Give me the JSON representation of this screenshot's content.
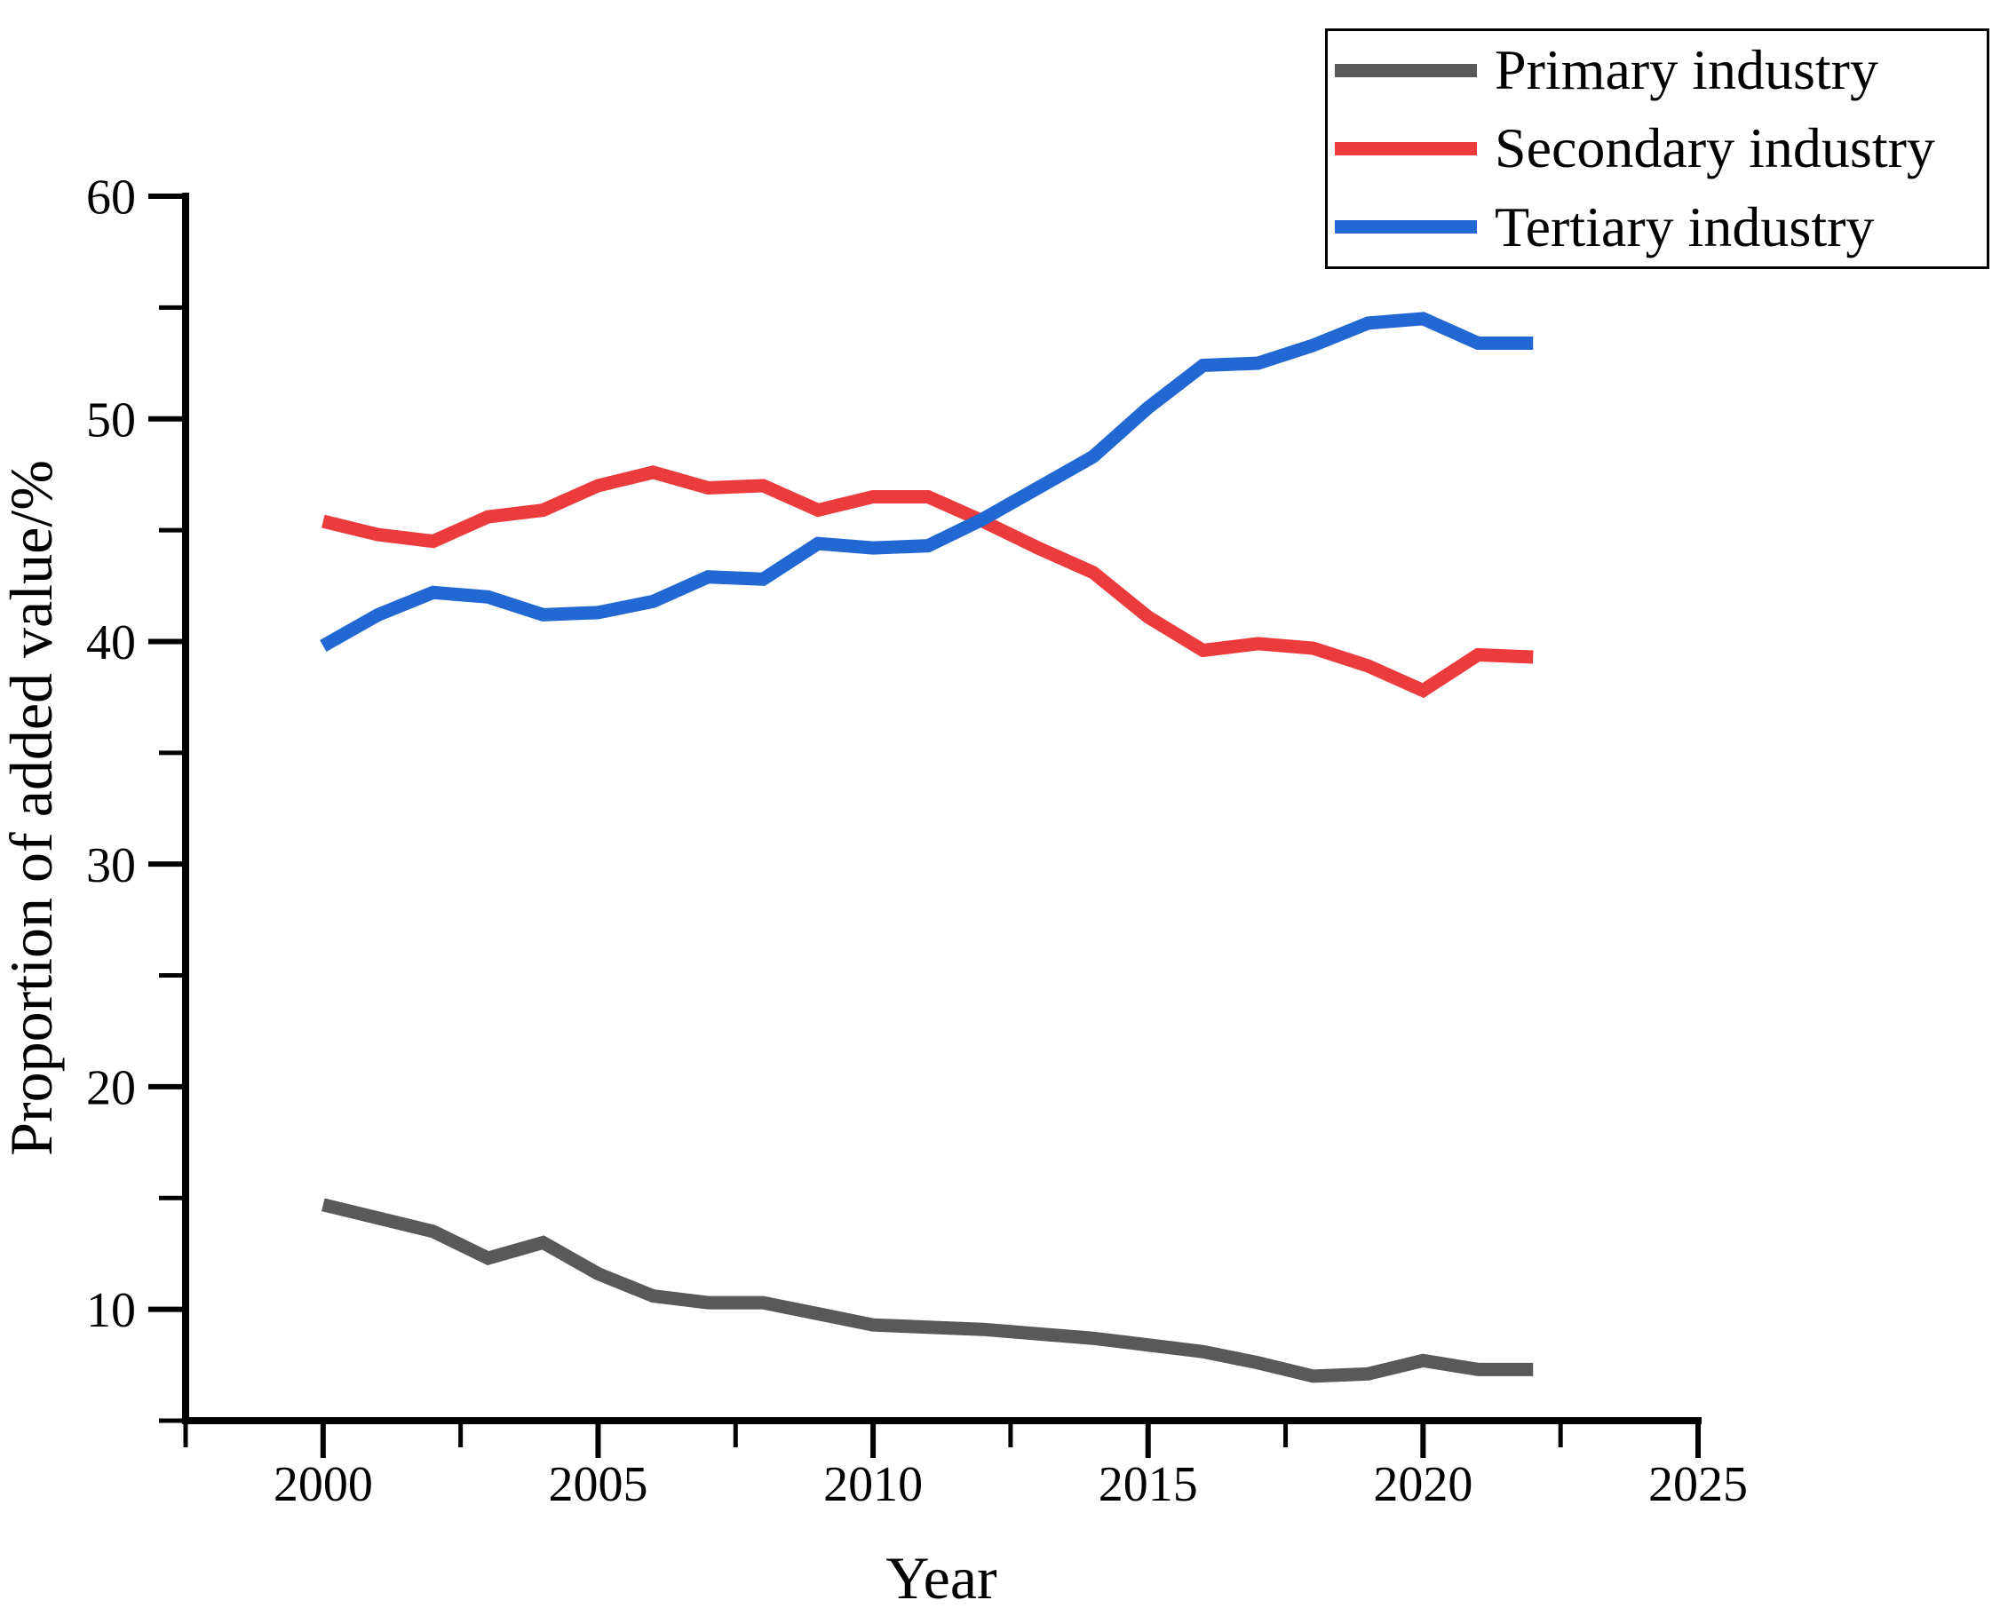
{
  "figure": {
    "background": "#ffffff",
    "axis_color": "#000000"
  },
  "axes": {
    "x_title": "Year",
    "y_title": "Proportion of added value/%"
  },
  "chart_data": {
    "type": "line",
    "title": "",
    "xlabel": "Year",
    "ylabel": "Proportion of added value/%",
    "x": [
      2000,
      2001,
      2002,
      2003,
      2004,
      2005,
      2006,
      2007,
      2008,
      2009,
      2010,
      2011,
      2012,
      2013,
      2014,
      2015,
      2016,
      2017,
      2018,
      2019,
      2020,
      2021,
      2022
    ],
    "series": [
      {
        "name": "Primary industry",
        "color": "#595959",
        "values": [
          14.7,
          14.1,
          13.5,
          12.3,
          13.0,
          11.6,
          10.6,
          10.3,
          10.3,
          9.8,
          9.3,
          9.2,
          9.1,
          8.9,
          8.7,
          8.4,
          8.1,
          7.6,
          7.0,
          7.1,
          7.7,
          7.3,
          7.3
        ]
      },
      {
        "name": "Secondary industry",
        "color": "#EC3B3C",
        "values": [
          45.4,
          44.8,
          44.5,
          45.6,
          45.9,
          47.0,
          47.6,
          46.9,
          47.0,
          45.9,
          46.5,
          46.5,
          45.4,
          44.2,
          43.1,
          41.1,
          39.6,
          39.9,
          39.7,
          38.9,
          37.8,
          39.4,
          39.3
        ]
      },
      {
        "name": "Tertiary industry",
        "color": "#2268D3",
        "values": [
          39.8,
          41.2,
          42.2,
          42.0,
          41.2,
          41.3,
          41.8,
          42.9,
          42.8,
          44.4,
          44.2,
          44.3,
          45.5,
          46.9,
          48.3,
          50.5,
          52.4,
          52.5,
          53.3,
          54.3,
          54.5,
          53.4,
          53.4
        ]
      }
    ],
    "xlim": [
      1997.5,
      2025
    ],
    "ylim": [
      5,
      60
    ],
    "x_major_ticks": [
      2000,
      2005,
      2010,
      2015,
      2020,
      2025
    ],
    "x_minor_ticks": [
      1997.5,
      2002.5,
      2007.5,
      2012.5,
      2017.5,
      2022.5
    ],
    "y_major_ticks": [
      10,
      20,
      30,
      40,
      50,
      60
    ],
    "y_minor_ticks": [
      5,
      15,
      25,
      35,
      45,
      55
    ],
    "grid": false,
    "legend_position": "top-right",
    "line_width": 15
  }
}
